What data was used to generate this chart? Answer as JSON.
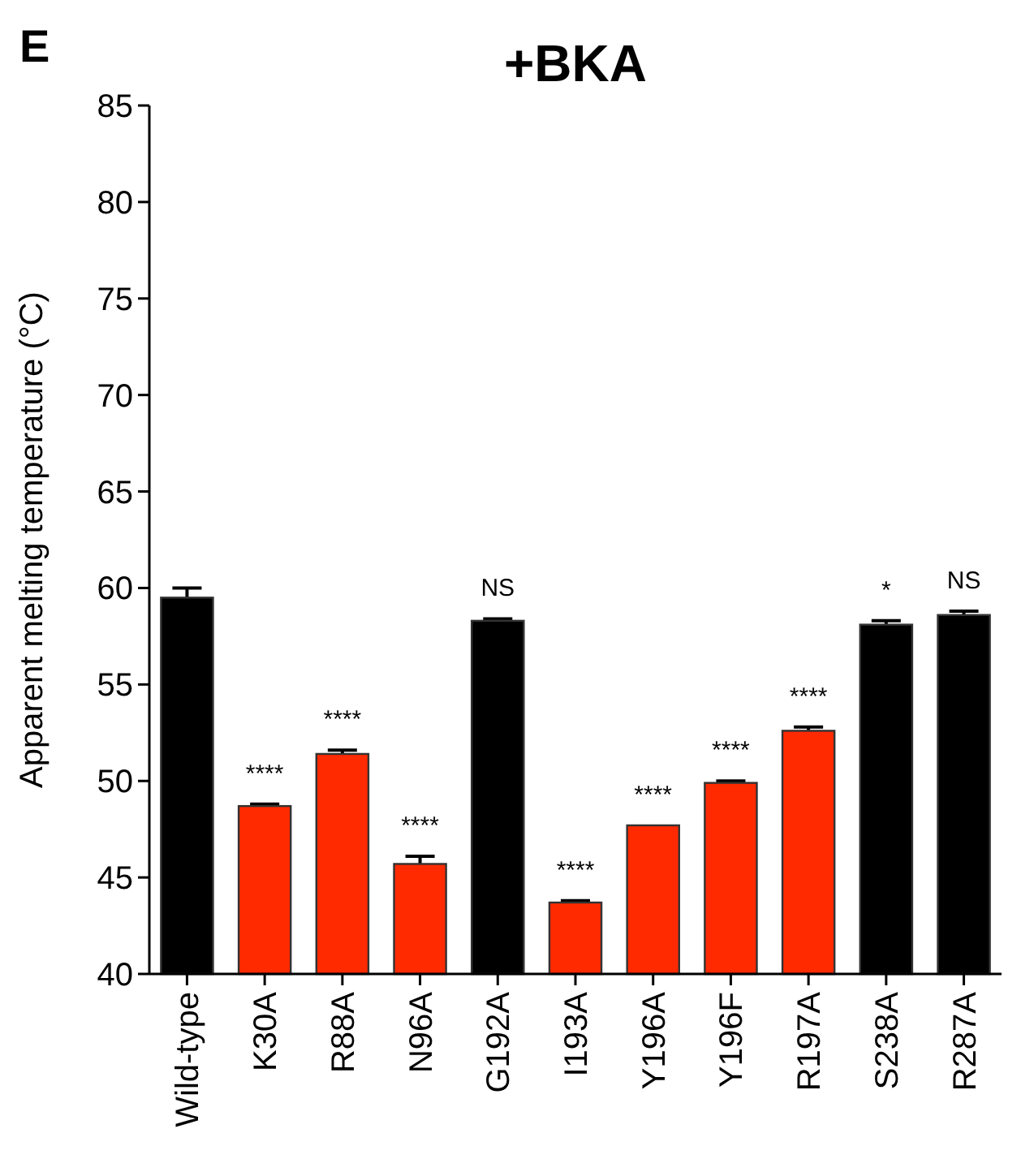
{
  "chart_data": {
    "type": "bar",
    "title": "+BKA",
    "ylabel": "Apparent melting temperature (°C)",
    "categories": [
      "Wild-type",
      "K30A",
      "R88A",
      "N96A",
      "G192A",
      "I193A",
      "Y196A",
      "Y196F",
      "R197A",
      "S238A",
      "R287A"
    ],
    "values": [
      59.5,
      48.7,
      51.4,
      45.7,
      58.3,
      43.7,
      47.7,
      49.9,
      52.6,
      58.1,
      58.6
    ],
    "errors": [
      0.5,
      0.1,
      0.2,
      0.4,
      0.1,
      0.1,
      null,
      0.1,
      0.2,
      0.2,
      0.2
    ],
    "colors": [
      "#000000",
      "#ff2a00",
      "#ff2a00",
      "#ff2a00",
      "#000000",
      "#ff2a00",
      "#ff2a00",
      "#ff2a00",
      "#ff2a00",
      "#000000",
      "#000000"
    ],
    "ylim": [
      40,
      85
    ],
    "yticks": [
      40,
      45,
      50,
      55,
      60,
      65,
      70,
      75,
      80,
      85
    ],
    "grid": false,
    "annotations": [
      {
        "text": "E"
      },
      {
        "text": "****",
        "x": "K30A",
        "y": 48.8
      },
      {
        "text": "****",
        "x": "R88A",
        "y": 51.6
      },
      {
        "text": "****",
        "x": "N96A",
        "y": 46.1
      },
      {
        "text": "NS",
        "x": "G192A",
        "y": 58.4
      },
      {
        "text": "****",
        "x": "I193A",
        "y": 43.8
      },
      {
        "text": "****",
        "x": "Y196A",
        "y": 47.7
      },
      {
        "text": "****",
        "x": "Y196F",
        "y": 50.0
      },
      {
        "text": "****",
        "x": "R197A",
        "y": 52.8
      },
      {
        "text": "*",
        "x": "S238A",
        "y": 58.3
      },
      {
        "text": "NS",
        "x": "R287A",
        "y": 58.8
      }
    ]
  }
}
